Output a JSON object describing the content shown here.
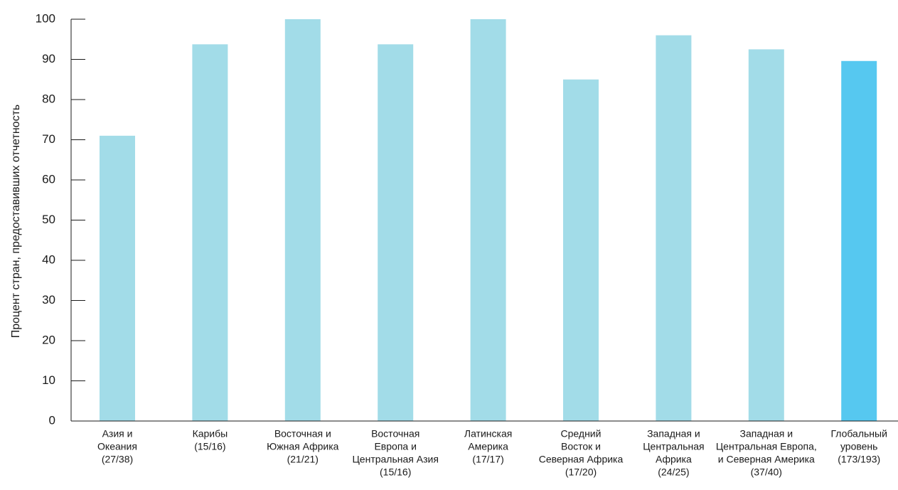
{
  "chart_data": {
    "type": "bar",
    "title": "",
    "xlabel": "",
    "ylabel": "Процент стран, предоставивших отчетность",
    "ylim": [
      0,
      100
    ],
    "yticks": [
      0,
      10,
      20,
      30,
      40,
      50,
      60,
      70,
      80,
      90,
      100
    ],
    "grid": false,
    "categories": [
      [
        "Азия и",
        "Океания",
        "(27/38)"
      ],
      [
        "Карибы",
        "(15/16)"
      ],
      [
        "Восточная и",
        "Южная Африка",
        "(21/21)"
      ],
      [
        "Восточная",
        "Европа и",
        "Центральная Азия",
        "(15/16)"
      ],
      [
        "Латинская",
        "Америка",
        "(17/17)"
      ],
      [
        "Средний",
        "Восток и",
        "Северная Африка",
        "(17/20)"
      ],
      [
        "Западная и",
        "Центральная",
        "Африка",
        "(24/25)"
      ],
      [
        "Западная и",
        "Центральная Европа,",
        "и Северная Америка",
        "(37/40)"
      ],
      [
        "Глобальный",
        "уровень",
        "(173/193)"
      ]
    ],
    "values": [
      71,
      93.75,
      100,
      93.75,
      100,
      85,
      96,
      92.5,
      89.6
    ],
    "colors": [
      "#a2dce8",
      "#a2dce8",
      "#a2dce8",
      "#a2dce8",
      "#a2dce8",
      "#a2dce8",
      "#a2dce8",
      "#a2dce8",
      "#56c8f0"
    ]
  }
}
